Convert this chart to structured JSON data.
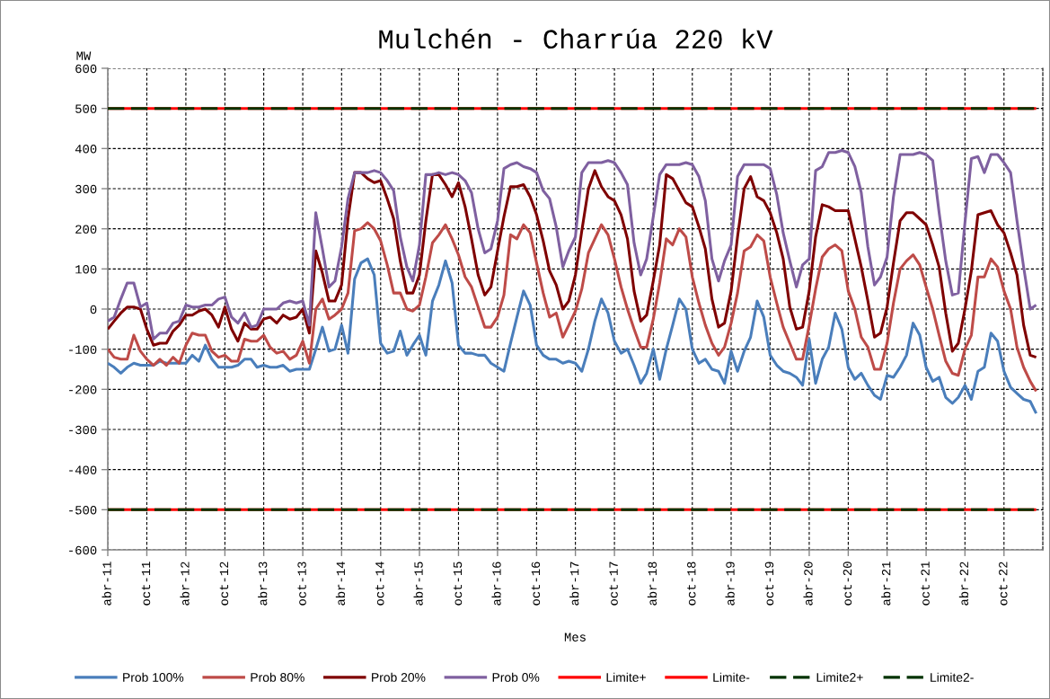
{
  "chart_data": {
    "type": "line",
    "title": "Mulchén - Charrúa 220 kV",
    "xlabel": "Mes",
    "ylabel": "MW",
    "legend": "bottom",
    "grid": true,
    "x": [
      "2011-04",
      "2011-05",
      "2011-06",
      "2011-07",
      "2011-08",
      "2011-09",
      "2011-10",
      "2011-11",
      "2011-12",
      "2012-01",
      "2012-02",
      "2012-03",
      "2012-04",
      "2012-05",
      "2012-06",
      "2012-07",
      "2012-08",
      "2012-09",
      "2012-10",
      "2012-11",
      "2012-12",
      "2013-01",
      "2013-02",
      "2013-03",
      "2013-04",
      "2013-05",
      "2013-06",
      "2013-07",
      "2013-08",
      "2013-09",
      "2013-10",
      "2013-11",
      "2013-12",
      "2014-01",
      "2014-02",
      "2014-03",
      "2014-04",
      "2014-05",
      "2014-06",
      "2014-07",
      "2014-08",
      "2014-09",
      "2014-10",
      "2014-11",
      "2014-12",
      "2015-01",
      "2015-02",
      "2015-03",
      "2015-04",
      "2015-05",
      "2015-06",
      "2015-07",
      "2015-08",
      "2015-09",
      "2015-10",
      "2015-11",
      "2015-12",
      "2016-01",
      "2016-02",
      "2016-03",
      "2016-04",
      "2016-05",
      "2016-06",
      "2016-07",
      "2016-08",
      "2016-09",
      "2016-10",
      "2016-11",
      "2016-12",
      "2017-01",
      "2017-02",
      "2017-03",
      "2017-04",
      "2017-05",
      "2017-06",
      "2017-07",
      "2017-08",
      "2017-09",
      "2017-10",
      "2017-11",
      "2017-12",
      "2018-01",
      "2018-02",
      "2018-03",
      "2018-04",
      "2018-05",
      "2018-06",
      "2018-07",
      "2018-08",
      "2018-09",
      "2018-10",
      "2018-11",
      "2018-12",
      "2019-01",
      "2019-02",
      "2019-03",
      "2019-04",
      "2019-05",
      "2019-06",
      "2019-07",
      "2019-08",
      "2019-09",
      "2019-10",
      "2019-11",
      "2019-12",
      "2020-01",
      "2020-02",
      "2020-03",
      "2020-04",
      "2020-05",
      "2020-06",
      "2020-07",
      "2020-08",
      "2020-09",
      "2020-10",
      "2020-11",
      "2020-12",
      "2021-01",
      "2021-02",
      "2021-03",
      "2021-04",
      "2021-05",
      "2021-06",
      "2021-07",
      "2021-08",
      "2021-09",
      "2021-10",
      "2021-11",
      "2021-12",
      "2022-01",
      "2022-02",
      "2022-03",
      "2022-04",
      "2022-05",
      "2022-06",
      "2022-07",
      "2022-08",
      "2022-09",
      "2022-10",
      "2022-11",
      "2022-12",
      "2023-01",
      "2023-02",
      "2023-03"
    ],
    "xlim": [
      "2011-04",
      "2023-04"
    ],
    "xticks": [
      {
        "value": "2011-04",
        "label": "abr-11"
      },
      {
        "value": "2011-10",
        "label": "oct-11"
      },
      {
        "value": "2012-04",
        "label": "abr-12"
      },
      {
        "value": "2012-10",
        "label": "oct-12"
      },
      {
        "value": "2013-04",
        "label": "abr-13"
      },
      {
        "value": "2013-10",
        "label": "oct-13"
      },
      {
        "value": "2014-04",
        "label": "abr-14"
      },
      {
        "value": "2014-10",
        "label": "oct-14"
      },
      {
        "value": "2015-04",
        "label": "abr-15"
      },
      {
        "value": "2015-10",
        "label": "oct-15"
      },
      {
        "value": "2016-04",
        "label": "abr-16"
      },
      {
        "value": "2016-10",
        "label": "oct-16"
      },
      {
        "value": "2017-04",
        "label": "abr-17"
      },
      {
        "value": "2017-10",
        "label": "oct-17"
      },
      {
        "value": "2018-04",
        "label": "abr-18"
      },
      {
        "value": "2018-10",
        "label": "oct-18"
      },
      {
        "value": "2019-04",
        "label": "abr-19"
      },
      {
        "value": "2019-10",
        "label": "oct-19"
      },
      {
        "value": "2020-04",
        "label": "abr-20"
      },
      {
        "value": "2020-10",
        "label": "oct-20"
      },
      {
        "value": "2021-04",
        "label": "abr-21"
      },
      {
        "value": "2021-10",
        "label": "oct-21"
      },
      {
        "value": "2022-04",
        "label": "abr-22"
      },
      {
        "value": "2022-10",
        "label": "oct-22"
      }
    ],
    "ylim": [
      -600,
      600
    ],
    "yticks": [
      -600,
      -500,
      -400,
      -300,
      -200,
      -100,
      0,
      100,
      200,
      300,
      400,
      500,
      600
    ],
    "series": [
      {
        "name": "Prob 100%",
        "color": "#4a7ebb",
        "values": [
          -135,
          -145,
          -160,
          -145,
          -135,
          -140,
          -140,
          -140,
          -130,
          -135,
          -135,
          -135,
          -135,
          -115,
          -130,
          -90,
          -125,
          -145,
          -145,
          -145,
          -140,
          -125,
          -125,
          -145,
          -140,
          -145,
          -145,
          -140,
          -155,
          -150,
          -150,
          -150,
          -100,
          -45,
          -105,
          -100,
          -40,
          -110,
          75,
          115,
          125,
          85,
          -85,
          -110,
          -105,
          -55,
          -115,
          -90,
          -65,
          -115,
          20,
          60,
          120,
          65,
          -90,
          -110,
          -110,
          -115,
          -115,
          -135,
          -145,
          -155,
          -85,
          -20,
          45,
          10,
          -90,
          -115,
          -125,
          -125,
          -135,
          -130,
          -135,
          -155,
          -100,
          -30,
          25,
          -10,
          -80,
          -110,
          -100,
          -140,
          -185,
          -160,
          -100,
          -175,
          -100,
          -40,
          25,
          0,
          -100,
          -135,
          -125,
          -150,
          -155,
          -185,
          -105,
          -155,
          -105,
          -70,
          20,
          -20,
          -115,
          -140,
          -155,
          -160,
          -170,
          -190,
          -75,
          -185,
          -125,
          -95,
          -10,
          -50,
          -145,
          -175,
          -160,
          -190,
          -215,
          -225,
          -165,
          -170,
          -145,
          -115,
          -35,
          -65,
          -145,
          -180,
          -170,
          -220,
          -235,
          -220,
          -190,
          -225,
          -155,
          -145,
          -60,
          -80,
          -155,
          -195,
          -210,
          -225,
          -230,
          -260
        ]
      },
      {
        "name": "Prob 80%",
        "color": "#be4b48",
        "values": [
          -100,
          -120,
          -125,
          -125,
          -65,
          -105,
          -125,
          -140,
          -125,
          -140,
          -120,
          -135,
          -90,
          -60,
          -65,
          -65,
          -105,
          -120,
          -115,
          -130,
          -130,
          -75,
          -80,
          -80,
          -65,
          -95,
          -110,
          -105,
          -125,
          -115,
          -80,
          -135,
          0,
          25,
          -25,
          -15,
          0,
          40,
          195,
          200,
          215,
          200,
          170,
          110,
          40,
          40,
          0,
          -5,
          10,
          80,
          165,
          185,
          210,
          175,
          135,
          80,
          55,
          5,
          -45,
          -45,
          -20,
          35,
          185,
          175,
          210,
          190,
          115,
          40,
          -20,
          -10,
          -70,
          -40,
          -5,
          50,
          140,
          175,
          210,
          185,
          125,
          55,
          0,
          -50,
          -95,
          -95,
          -25,
          65,
          175,
          160,
          200,
          180,
          80,
          15,
          -40,
          -85,
          -115,
          -95,
          -35,
          40,
          145,
          155,
          185,
          170,
          80,
          15,
          -45,
          -85,
          -125,
          -125,
          -40,
          50,
          130,
          150,
          160,
          145,
          45,
          0,
          -70,
          -95,
          -150,
          -150,
          -85,
          15,
          100,
          120,
          135,
          110,
          55,
          0,
          -65,
          -130,
          -160,
          -165,
          -100,
          -65,
          80,
          80,
          125,
          105,
          45,
          0,
          -95,
          -145,
          -180,
          -205
        ]
      },
      {
        "name": "Prob 20%",
        "color": "#7f0000",
        "values": [
          -50,
          -30,
          -10,
          5,
          5,
          0,
          -50,
          -90,
          -85,
          -85,
          -55,
          -40,
          -15,
          -15,
          -5,
          0,
          -15,
          -45,
          5,
          -50,
          -80,
          -35,
          -50,
          -50,
          -25,
          -20,
          -35,
          -15,
          -25,
          -20,
          0,
          -60,
          145,
          90,
          20,
          20,
          60,
          225,
          340,
          340,
          325,
          315,
          320,
          275,
          225,
          120,
          40,
          40,
          85,
          220,
          335,
          335,
          310,
          280,
          315,
          255,
          175,
          85,
          35,
          55,
          145,
          230,
          305,
          305,
          310,
          280,
          235,
          170,
          95,
          60,
          0,
          20,
          85,
          195,
          300,
          345,
          305,
          280,
          270,
          235,
          175,
          45,
          -30,
          -15,
          70,
          160,
          335,
          325,
          295,
          265,
          255,
          205,
          150,
          25,
          -45,
          -35,
          45,
          180,
          300,
          330,
          280,
          270,
          240,
          190,
          125,
          5,
          -50,
          -45,
          45,
          180,
          260,
          255,
          245,
          245,
          245,
          175,
          105,
          20,
          -70,
          -60,
          5,
          115,
          220,
          240,
          240,
          225,
          210,
          160,
          105,
          -10,
          -105,
          -85,
          0,
          95,
          235,
          240,
          245,
          210,
          190,
          140,
          85,
          -40,
          -115,
          -120
        ]
      },
      {
        "name": "Prob 0%",
        "color": "#7f60a0",
        "values": [
          -30,
          -20,
          25,
          65,
          65,
          5,
          15,
          -75,
          -60,
          -60,
          -35,
          -30,
          10,
          5,
          5,
          10,
          10,
          25,
          30,
          -20,
          -35,
          -10,
          -45,
          -40,
          0,
          0,
          0,
          15,
          20,
          15,
          20,
          -40,
          240,
          150,
          55,
          70,
          155,
          275,
          340,
          340,
          340,
          345,
          340,
          320,
          295,
          180,
          105,
          70,
          160,
          335,
          335,
          340,
          335,
          340,
          335,
          320,
          290,
          200,
          140,
          150,
          220,
          350,
          360,
          365,
          355,
          350,
          340,
          295,
          275,
          205,
          105,
          145,
          180,
          340,
          365,
          365,
          365,
          370,
          365,
          340,
          310,
          165,
          85,
          125,
          230,
          335,
          360,
          360,
          360,
          365,
          360,
          330,
          270,
          125,
          70,
          120,
          160,
          330,
          360,
          360,
          360,
          360,
          350,
          285,
          190,
          120,
          55,
          110,
          125,
          345,
          355,
          390,
          390,
          395,
          390,
          355,
          290,
          155,
          60,
          80,
          130,
          280,
          385,
          385,
          385,
          390,
          385,
          370,
          240,
          120,
          35,
          40,
          215,
          375,
          380,
          340,
          385,
          385,
          365,
          340,
          220,
          105,
          0,
          10
        ]
      },
      {
        "name": "Limite+",
        "color": "#ff0000",
        "line_style": "solid",
        "x": [
          "2011-04",
          "2023-03"
        ],
        "values": [
          500,
          500
        ]
      },
      {
        "name": "Limite-",
        "color": "#ff0000",
        "line_style": "solid",
        "x": [
          "2011-04",
          "2023-03"
        ],
        "values": [
          -500,
          -500
        ]
      },
      {
        "name": "Limite2+",
        "color": "#003300",
        "line_style": "dashed",
        "x": [
          "2011-04",
          "2023-03"
        ],
        "values": [
          500,
          500
        ]
      },
      {
        "name": "Limite2-",
        "color": "#003300",
        "line_style": "dashed",
        "x": [
          "2011-04",
          "2023-03"
        ],
        "values": [
          -500,
          -500
        ]
      }
    ]
  }
}
